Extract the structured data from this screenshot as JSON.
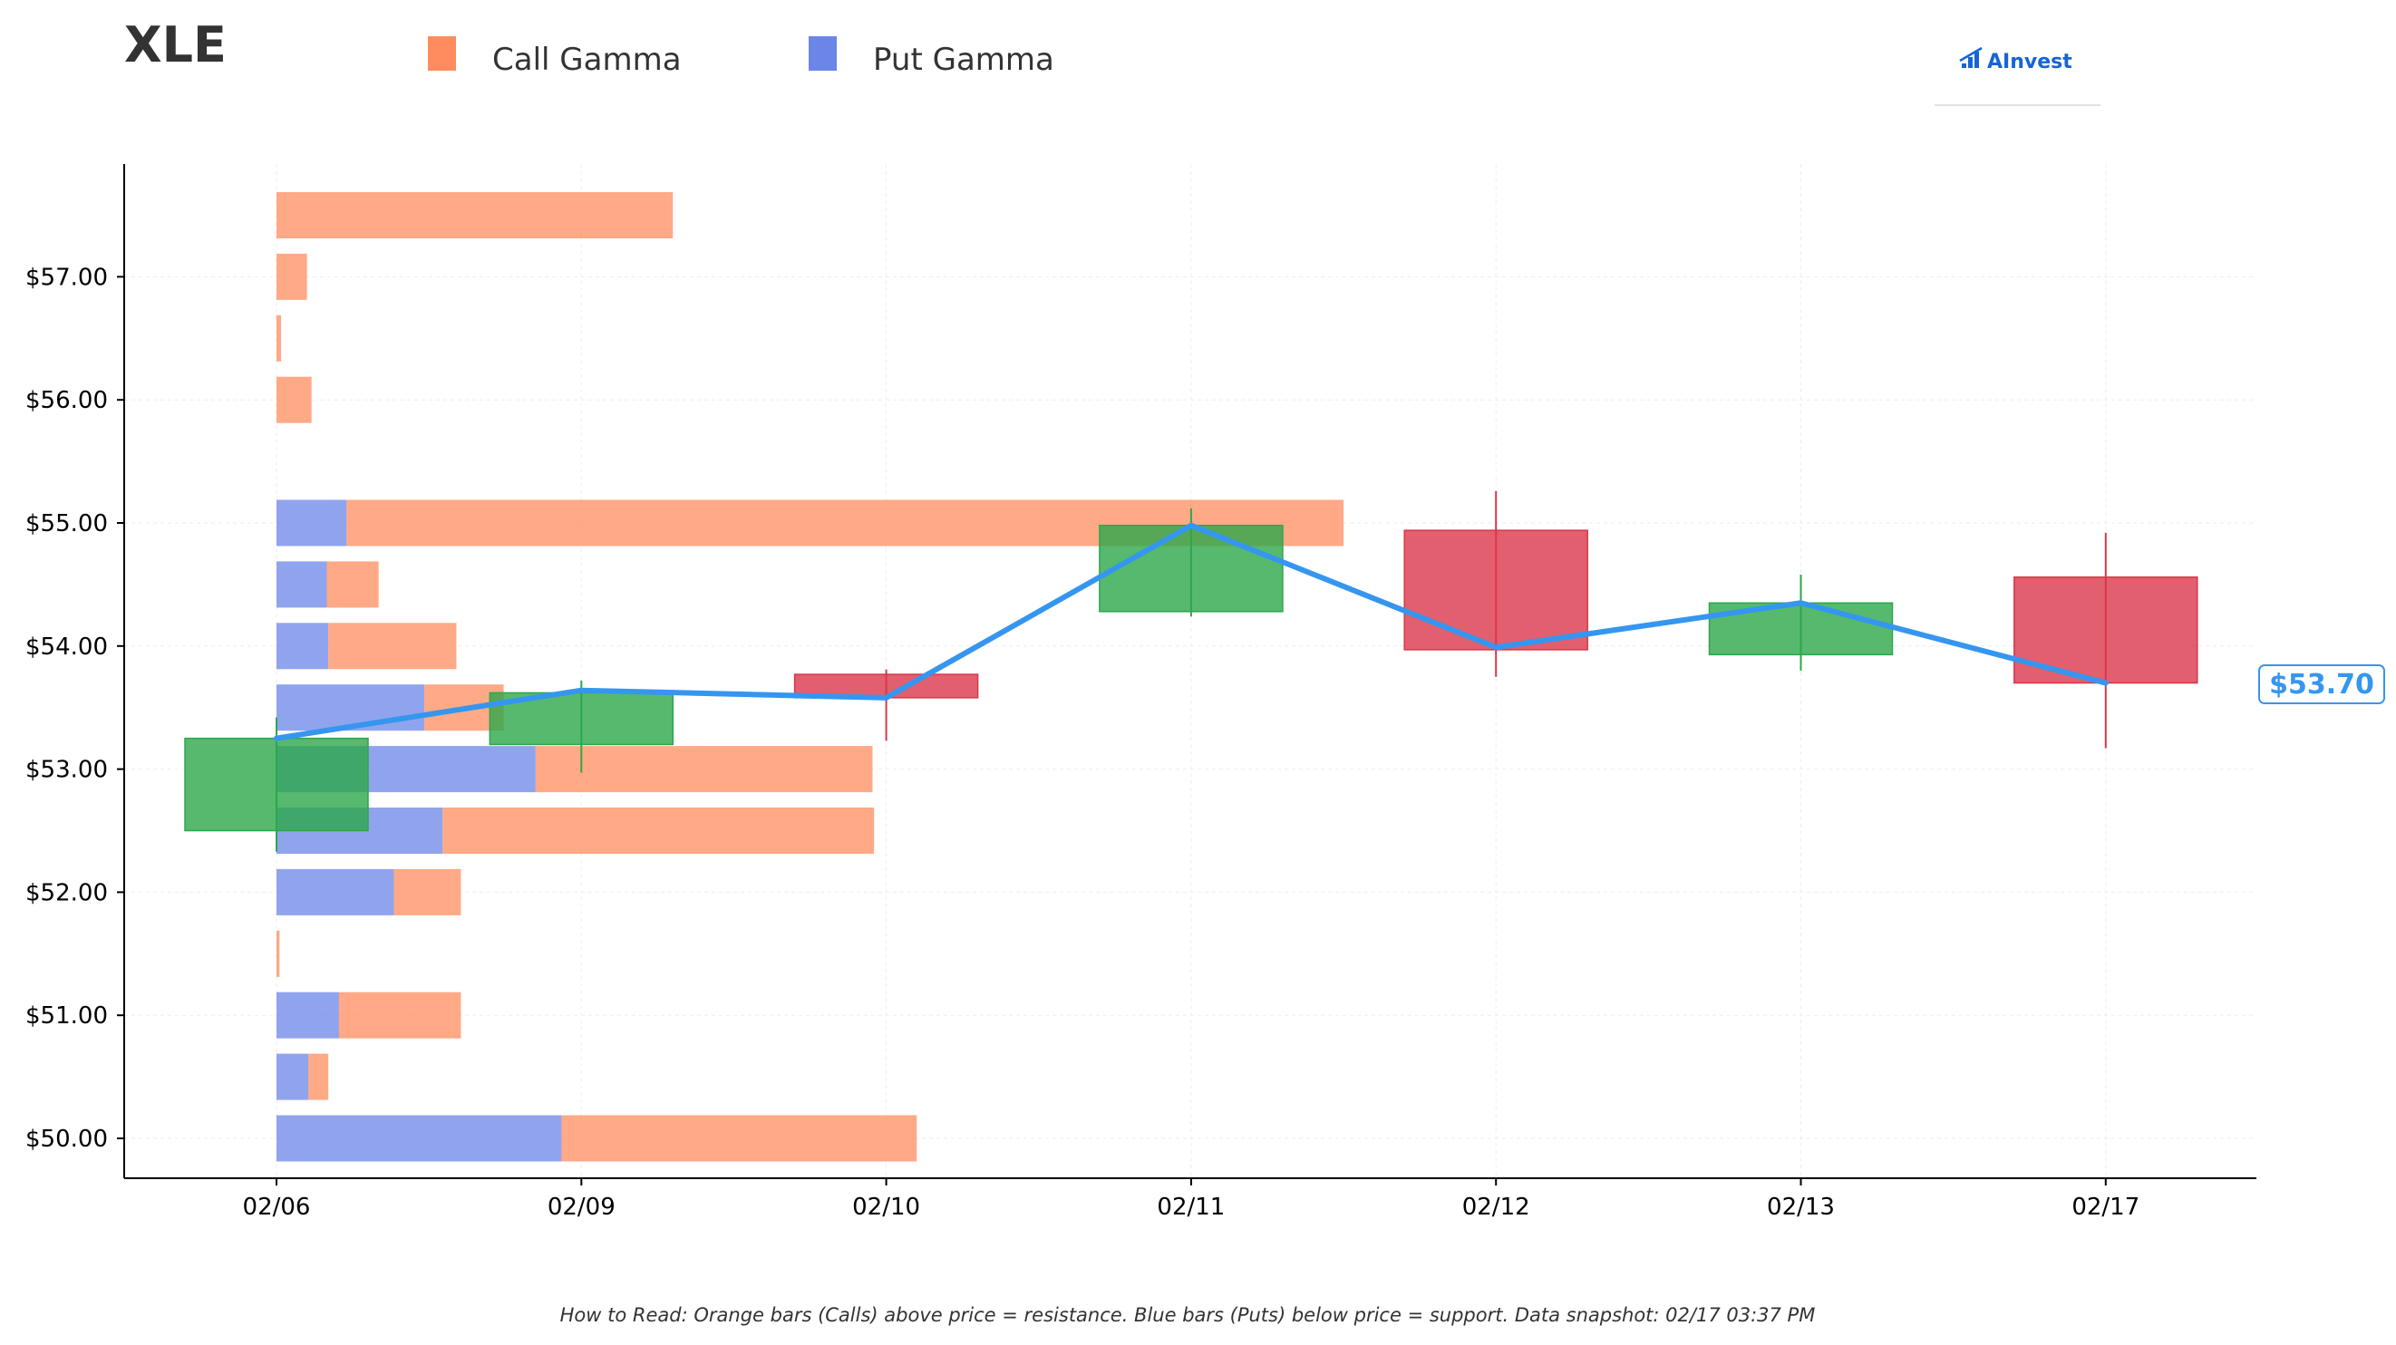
{
  "title": "XLE",
  "brand": "AInvest",
  "footnote": "How to Read: Orange bars (Calls) above price = resistance. Blue bars (Puts) below price = support. Data snapshot: 02/17 03:37 PM",
  "colors": {
    "call": "#ff8c5f",
    "put": "#6b86e8",
    "up": "#2ca84a",
    "down": "#d9374a",
    "price_line": "#3596f0",
    "brand": "#1565d8"
  },
  "chart_data": {
    "type": "candlestick",
    "legend": [
      {
        "name": "Call Gamma",
        "color": "#ff8c5f"
      },
      {
        "name": "Put Gamma",
        "color": "#6b86e8"
      }
    ],
    "legend_position": "top",
    "x_categories": [
      "02/06",
      "02/09",
      "02/10",
      "02/11",
      "02/12",
      "02/13",
      "02/17"
    ],
    "y_ticks": [
      50,
      51,
      52,
      53,
      54,
      55,
      56,
      57
    ],
    "y_tick_labels": [
      "$50.00",
      "$51.00",
      "$52.00",
      "$53.00",
      "$54.00",
      "$55.00",
      "$56.00",
      "$57.00"
    ],
    "ylim": [
      49.7,
      57.95
    ],
    "grid": true,
    "candles": [
      {
        "date": "02/06",
        "open": 52.5,
        "high": 53.42,
        "low": 52.33,
        "close": 53.25
      },
      {
        "date": "02/09",
        "open": 53.2,
        "high": 53.72,
        "low": 52.97,
        "close": 53.62
      },
      {
        "date": "02/10",
        "open": 53.77,
        "high": 53.81,
        "low": 53.23,
        "close": 53.58
      },
      {
        "date": "02/11",
        "open": 54.28,
        "high": 55.12,
        "low": 54.24,
        "close": 54.98
      },
      {
        "date": "02/12",
        "open": 54.94,
        "high": 55.26,
        "low": 53.75,
        "close": 53.97
      },
      {
        "date": "02/13",
        "open": 53.93,
        "high": 54.58,
        "low": 53.8,
        "close": 54.35
      },
      {
        "date": "02/17",
        "open": 54.56,
        "high": 54.92,
        "low": 53.17,
        "close": 53.7
      }
    ],
    "price_line": [
      53.25,
      53.64,
      53.58,
      54.98,
      53.99,
      54.35,
      53.7
    ],
    "last_price_label": "$53.70",
    "gamma_unit": "days-of-axis",
    "gamma_bars": [
      {
        "strike": 57.5,
        "put": 0.0,
        "call": 1.3
      },
      {
        "strike": 57.0,
        "put": 0.0,
        "call": 0.1
      },
      {
        "strike": 56.5,
        "put": 0.0,
        "call": 0.015
      },
      {
        "strike": 56.0,
        "put": 0.0,
        "call": 0.115
      },
      {
        "strike": 55.0,
        "put": 0.23,
        "call": 3.27
      },
      {
        "strike": 54.5,
        "put": 0.165,
        "call": 0.17
      },
      {
        "strike": 54.0,
        "put": 0.17,
        "call": 0.42
      },
      {
        "strike": 53.5,
        "put": 0.485,
        "call": 0.26
      },
      {
        "strike": 53.0,
        "put": 0.85,
        "call": 1.105
      },
      {
        "strike": 52.5,
        "put": 0.545,
        "call": 1.415
      },
      {
        "strike": 52.0,
        "put": 0.385,
        "call": 0.22
      },
      {
        "strike": 51.5,
        "put": 0.0,
        "call": 0.01
      },
      {
        "strike": 51.0,
        "put": 0.205,
        "call": 0.4
      },
      {
        "strike": 50.5,
        "put": 0.105,
        "call": 0.065
      },
      {
        "strike": 50.0,
        "put": 0.935,
        "call": 1.165
      }
    ]
  }
}
